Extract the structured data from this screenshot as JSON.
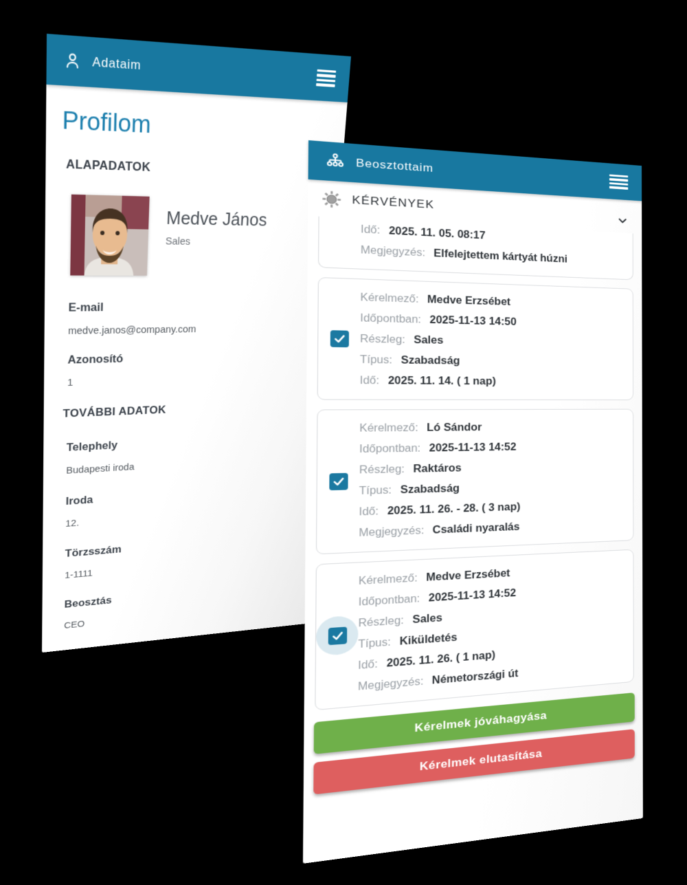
{
  "colors": {
    "teal": "#1878a0",
    "blue_title": "#1c7fae",
    "green": "#6fb04a",
    "red": "#de5f5f",
    "checkbox": "#1b79a1"
  },
  "icons": {
    "left_appbar": "person-icon",
    "right_appbar": "org-chart-icon",
    "menu": "menu-icon",
    "section": "sun-icon",
    "expand": "chevron-down-icon",
    "checkbox": "check-icon"
  },
  "left_phone": {
    "header": {
      "title": "Adataim"
    },
    "page_title": "Profilom",
    "section_basic": "ALAPADATOK",
    "section_more": "TOVÁBBI ADATOK",
    "profile": {
      "name": "Medve János",
      "role": "Sales"
    },
    "fields_basic": [
      {
        "label": "E-mail",
        "value": "medve.janos@company.com"
      },
      {
        "label": "Azonosító",
        "value": "1"
      }
    ],
    "fields_more": [
      {
        "label": "Telephely",
        "value": "Budapesti iroda"
      },
      {
        "label": "Iroda",
        "value": "12."
      },
      {
        "label": "Törzsszám",
        "value": "1-1111"
      },
      {
        "label": "Beosztás",
        "value": "CEO"
      }
    ]
  },
  "right_phone": {
    "header": {
      "title": "Beosztottaim"
    },
    "section": {
      "title": "KÉRVÉNYEK"
    },
    "cards": [
      {
        "clipped": true,
        "rows": [
          {
            "label": "Idő:",
            "value": "2025. 11. 05. 08:17"
          },
          {
            "label": "Megjegyzés:",
            "value": "Elfelejtettem kártyát húzni"
          }
        ]
      },
      {
        "checkbox": {
          "checked": true,
          "halo": false
        },
        "rows": [
          {
            "label": "Kérelmező:",
            "value": "Medve Erzsébet"
          },
          {
            "label": "Időpontban:",
            "value": "2025-11-13 14:50"
          },
          {
            "label": "Részleg:",
            "value": "Sales"
          },
          {
            "label": "Típus:",
            "value": "Szabadság"
          },
          {
            "label": "Idő:",
            "value": "2025. 11. 14.   ( 1 nap)"
          }
        ]
      },
      {
        "checkbox": {
          "checked": true,
          "halo": false
        },
        "rows": [
          {
            "label": "Kérelmező:",
            "value": "Ló Sándor"
          },
          {
            "label": "Időpontban:",
            "value": "2025-11-13 14:52"
          },
          {
            "label": "Részleg:",
            "value": "Raktáros"
          },
          {
            "label": "Típus:",
            "value": "Szabadság"
          },
          {
            "label": "Idő:",
            "value": "2025. 11. 26. - 28.   ( 3 nap)"
          },
          {
            "label": "Megjegyzés:",
            "value": "Családi nyaralás"
          }
        ]
      },
      {
        "checkbox": {
          "checked": true,
          "halo": true
        },
        "rows": [
          {
            "label": "Kérelmező:",
            "value": "Medve Erzsébet"
          },
          {
            "label": "Időpontban:",
            "value": "2025-11-13 14:52"
          },
          {
            "label": "Részleg:",
            "value": "Sales"
          },
          {
            "label": "Típus:",
            "value": "Kiküldetés"
          },
          {
            "label": "Idő:",
            "value": "2025. 11. 26.   ( 1 nap)"
          },
          {
            "label": "Megjegyzés:",
            "value": "Németországi út"
          }
        ]
      }
    ],
    "buttons": {
      "approve": "Kérelmek jóváhagyása",
      "reject": "Kérelmek elutasítása"
    }
  }
}
